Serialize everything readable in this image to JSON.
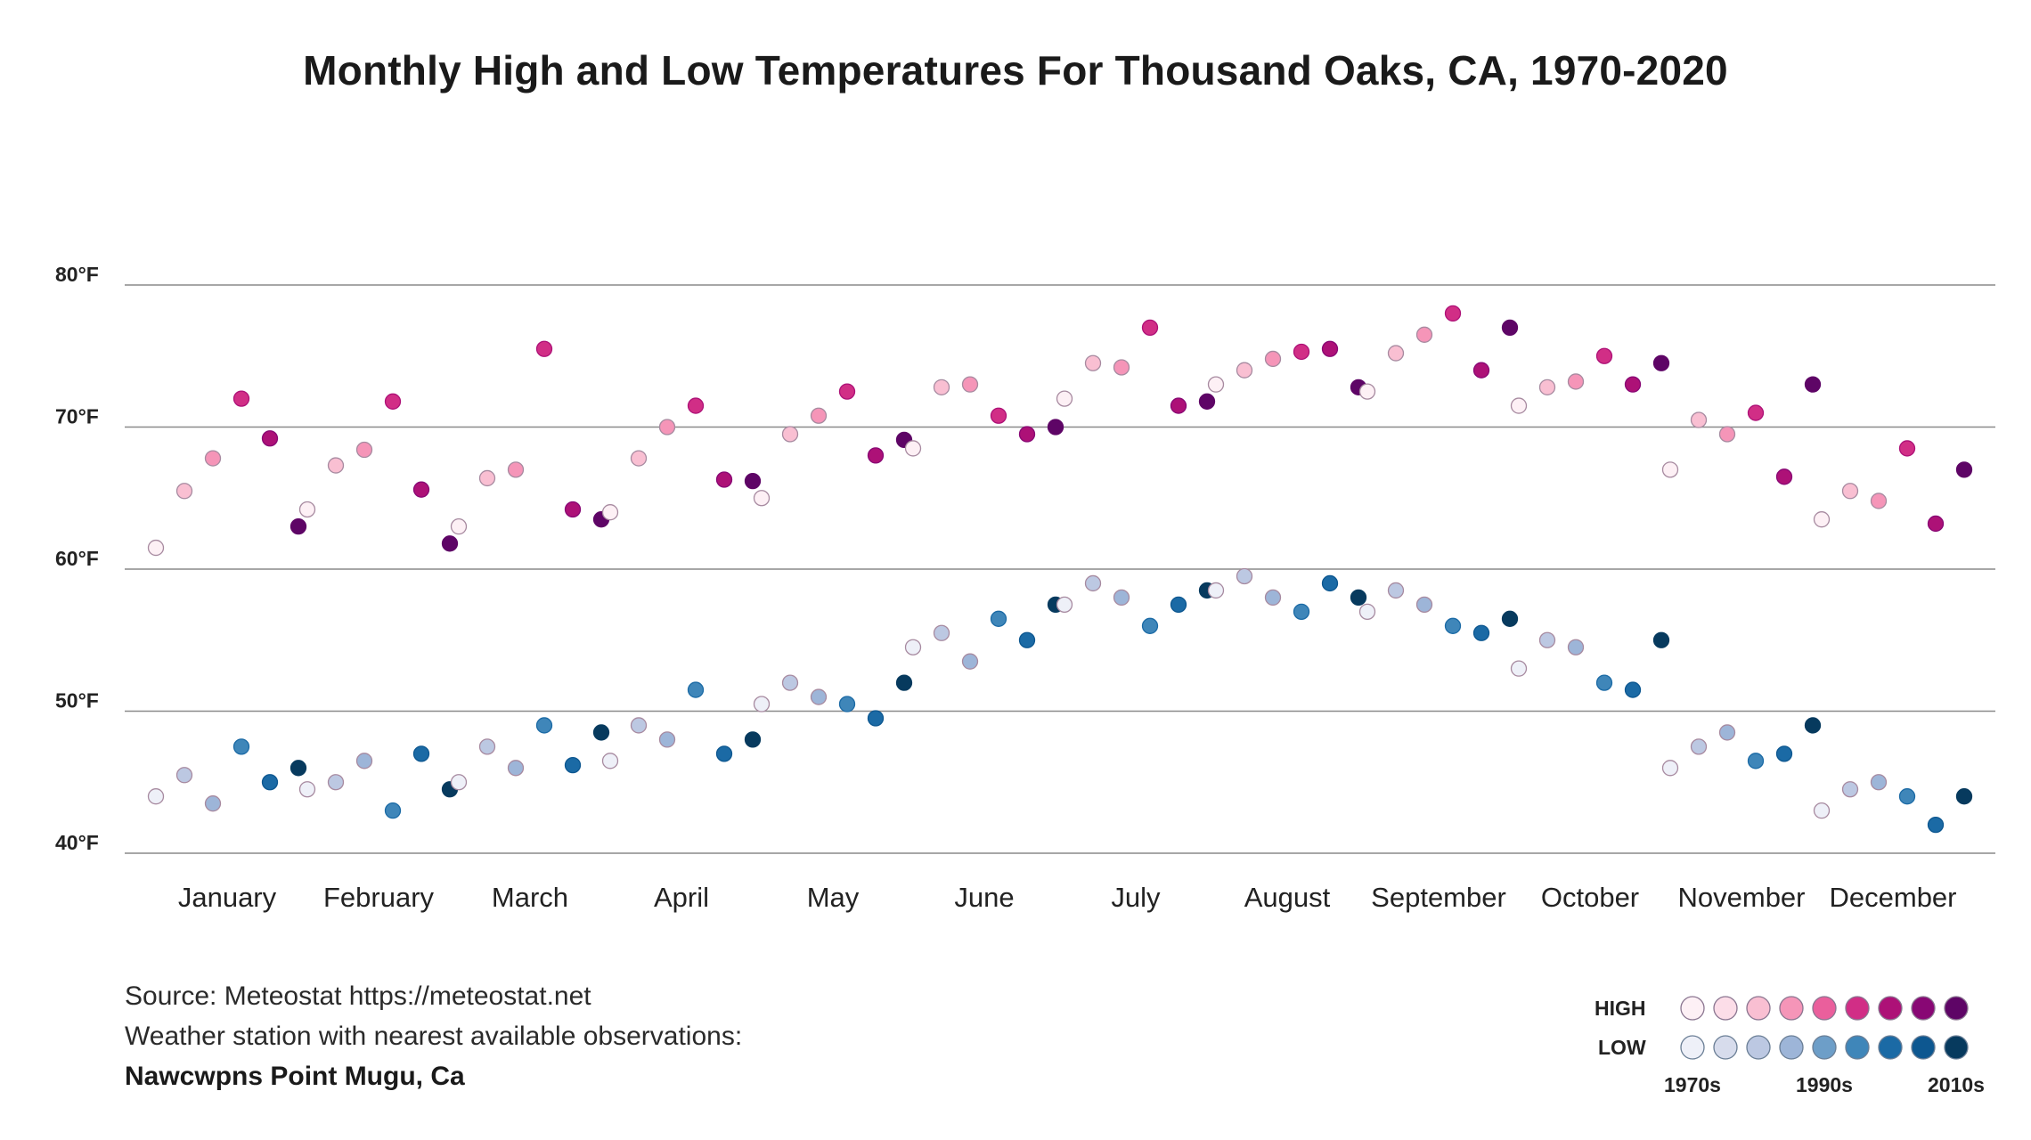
{
  "chart_data": {
    "type": "scatter",
    "title": "Monthly High and Low Temperatures For Thousand Oaks, CA, 1970-2020",
    "ylim": [
      40,
      80
    ],
    "yticks": [
      40,
      50,
      60,
      70,
      80
    ],
    "ytick_labels": [
      "40°F",
      "50°F",
      "60°F",
      "70°F",
      "80°F"
    ],
    "months": [
      "January",
      "February",
      "March",
      "April",
      "May",
      "June",
      "July",
      "August",
      "September",
      "October",
      "November",
      "December"
    ],
    "decades": [
      "1970s",
      "1990s",
      "2010s"
    ],
    "legend": {
      "high_label": "HIGH",
      "low_label": "LOW",
      "decade_labels": [
        "1970s",
        "1990s",
        "2010s"
      ]
    },
    "colors": {
      "high": [
        "#fdf0f5",
        "#fcdde8",
        "#f9bfd2",
        "#f595b8",
        "#ea5f9c",
        "#d12e86",
        "#ad1177",
        "#880774",
        "#5e0566"
      ],
      "low": [
        "#eef0f8",
        "#d7dcec",
        "#bcc8e2",
        "#9db5d8",
        "#6d9ec8",
        "#3f86b9",
        "#1b6aa5",
        "#0d5790",
        "#073a5e"
      ]
    },
    "series": [
      {
        "name": "High",
        "values": [
          [
            61.5,
            65.5,
            67.8,
            72.0,
            69.2,
            63.0
          ],
          [
            64.2,
            67.3,
            68.4,
            71.8,
            65.6,
            61.8
          ],
          [
            63.0,
            66.4,
            67.0,
            75.5,
            64.2,
            63.5
          ],
          [
            64.0,
            67.8,
            70.0,
            71.5,
            66.3,
            66.2
          ],
          [
            65.0,
            69.5,
            70.8,
            72.5,
            68.0,
            69.1
          ],
          [
            68.5,
            72.8,
            73.0,
            70.8,
            69.5,
            70.0
          ],
          [
            72.0,
            74.5,
            74.2,
            77.0,
            71.5,
            71.8
          ],
          [
            73.0,
            74.0,
            74.8,
            75.3,
            75.5,
            72.8
          ],
          [
            72.5,
            75.2,
            76.5,
            78.0,
            74.0,
            77.0
          ],
          [
            71.5,
            72.8,
            73.2,
            75.0,
            73.0,
            74.5
          ],
          [
            67.0,
            70.5,
            69.5,
            71.0,
            66.5,
            73.0
          ],
          [
            63.5,
            65.5,
            64.8,
            68.5,
            63.2,
            67.0
          ]
        ]
      },
      {
        "name": "Low",
        "values": [
          [
            44.0,
            45.5,
            43.5,
            47.5,
            45.0,
            46.0
          ],
          [
            44.5,
            45.0,
            46.5,
            43.0,
            47.0,
            44.5
          ],
          [
            45.0,
            47.5,
            46.0,
            49.0,
            46.2,
            48.5
          ],
          [
            46.5,
            49.0,
            48.0,
            51.5,
            47.0,
            48.0
          ],
          [
            50.5,
            52.0,
            51.0,
            50.5,
            49.5,
            52.0
          ],
          [
            54.5,
            55.5,
            53.5,
            56.5,
            55.0,
            57.5
          ],
          [
            57.5,
            59.0,
            58.0,
            56.0,
            57.5,
            58.5
          ],
          [
            58.5,
            59.5,
            58.0,
            57.0,
            59.0,
            58.0
          ],
          [
            57.0,
            58.5,
            57.5,
            56.0,
            55.5,
            56.5
          ],
          [
            53.0,
            55.0,
            54.5,
            52.0,
            51.5,
            55.0
          ],
          [
            46.0,
            47.5,
            48.5,
            46.5,
            47.0,
            49.0
          ],
          [
            43.0,
            44.5,
            45.0,
            44.0,
            42.0,
            44.0
          ]
        ]
      }
    ]
  },
  "source": {
    "line1": "Source: Meteostat https://meteostat.net",
    "line2": "Weather station with nearest available observations:",
    "station": "Nawcwpns Point Mugu, Ca"
  }
}
